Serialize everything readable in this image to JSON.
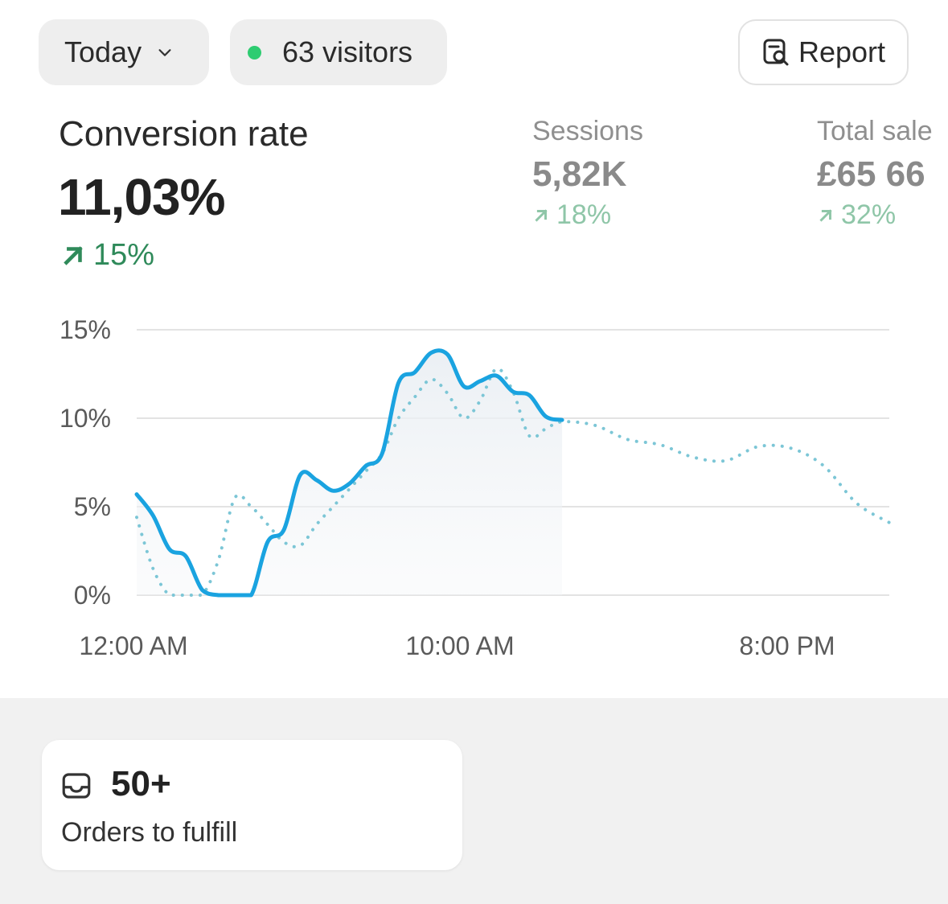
{
  "header": {
    "period_label": "Today",
    "visitors_label": "63 visitors",
    "report_label": "Report",
    "icons": [
      "chevron-down-icon",
      "live-dot-icon",
      "report-search-icon"
    ],
    "live_dot_color": "#2ecc71"
  },
  "metrics": {
    "primary": {
      "title": "Conversion rate",
      "value": "11,03%",
      "change": "15%",
      "trend_color": "#2f8a5a"
    },
    "sessions": {
      "title": "Sessions",
      "value": "5,82K",
      "change": "18%"
    },
    "total_sales": {
      "title": "Total sale",
      "value": "£65 66",
      "change": "32%"
    }
  },
  "chart_data": {
    "type": "line",
    "y_ticks": [
      "15%",
      "10%",
      "5%",
      "0%"
    ],
    "ylim": [
      0,
      15
    ],
    "x_tick_labels": [
      "12:00 AM",
      "10:00 AM",
      "8:00 PM"
    ],
    "grid": true,
    "accent_color": "#1aa3e0",
    "comparison_color": "#7cc6d6",
    "series": [
      {
        "style": "solid",
        "x": [
          0,
          0.5,
          1,
          1.5,
          2,
          2.5,
          3,
          3.5,
          4,
          4.5,
          5,
          5.5,
          6,
          6.5,
          7,
          7.5,
          8,
          8.5,
          9,
          9.5,
          10,
          10.5,
          11,
          11.5,
          12,
          12.5,
          13
        ],
        "values": [
          5.7,
          4.5,
          2.6,
          2.2,
          0.3,
          0,
          0,
          0,
          3.0,
          3.7,
          6.8,
          6.5,
          5.9,
          6.3,
          7.3,
          8.0,
          12.0,
          12.6,
          13.7,
          13.6,
          11.8,
          12.1,
          12.4,
          11.5,
          11.3,
          10.1,
          9.9
        ]
      },
      {
        "style": "dotted",
        "x": [
          0,
          0.5,
          1,
          1.5,
          2,
          2.5,
          3,
          3.5,
          4,
          4.5,
          5,
          5.5,
          6,
          6.5,
          7,
          7.5,
          8,
          8.5,
          9,
          9.5,
          10,
          10.5,
          11,
          11.5,
          12,
          12.5,
          13,
          14,
          15,
          16,
          17,
          18,
          19,
          20,
          21,
          22,
          23
        ],
        "values": [
          4.4,
          1.5,
          0,
          0,
          0,
          2.0,
          5.5,
          5.0,
          4.0,
          3.0,
          2.8,
          4.0,
          5.0,
          6.0,
          7.0,
          8.0,
          10.0,
          11.2,
          12.2,
          11.4,
          10.0,
          11.0,
          12.8,
          11.5,
          9.0,
          9.4,
          9.8,
          9.6,
          8.8,
          8.5,
          7.8,
          7.6,
          8.4,
          8.3,
          7.3,
          5.2,
          4.1
        ]
      }
    ]
  },
  "orders": {
    "count": "50+",
    "label": "Orders to fulfill",
    "icon": "inbox-icon"
  }
}
